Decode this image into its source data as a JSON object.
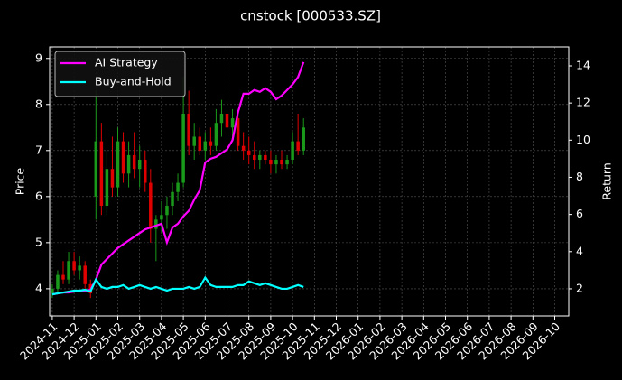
{
  "chart_data": {
    "type": "candlestick_returns",
    "title": "cnstock [000533.SZ]",
    "y_label": "Price",
    "y2_label": "Return",
    "x": [
      0,
      0.25,
      0.5,
      0.75,
      1,
      1.25,
      1.5,
      1.75,
      2,
      2.25,
      2.5,
      2.75,
      3,
      3.25,
      3.5,
      3.75,
      4,
      4.25,
      4.5,
      4.75,
      5,
      5.25,
      5.5,
      5.75,
      6,
      6.25,
      6.5,
      6.75,
      7,
      7.25,
      7.5,
      7.75,
      8,
      8.25,
      8.5,
      8.75,
      9,
      9.25,
      9.5,
      9.75,
      10,
      10.25,
      10.5,
      10.75,
      11,
      11.25,
      11.5
    ],
    "candles": {
      "open": [
        3.9,
        4.0,
        4.3,
        4.2,
        4.6,
        4.4,
        4.5,
        4.1,
        6.0,
        7.2,
        5.8,
        6.6,
        6.2,
        7.2,
        6.5,
        6.9,
        6.6,
        6.8,
        6.3,
        5.3,
        5.5,
        5.6,
        5.8,
        6.1,
        6.3,
        7.8,
        7.1,
        7.3,
        7.0,
        7.2,
        7.1,
        7.6,
        7.8,
        7.5,
        7.7,
        7.1,
        7.0,
        6.9,
        6.8,
        6.9,
        6.8,
        6.7,
        6.8,
        6.7,
        6.8,
        7.2,
        7.0
      ],
      "high": [
        4.1,
        4.4,
        4.6,
        4.8,
        4.8,
        4.7,
        4.6,
        4.2,
        8.3,
        7.6,
        7.0,
        7.3,
        7.5,
        7.4,
        7.2,
        7.4,
        7.1,
        7.0,
        6.6,
        5.6,
        5.9,
        6.0,
        6.3,
        6.5,
        8.6,
        8.3,
        7.6,
        7.5,
        7.4,
        7.5,
        7.9,
        8.1,
        8.0,
        7.9,
        7.8,
        7.4,
        7.3,
        7.2,
        7.0,
        7.0,
        7.0,
        6.9,
        7.0,
        6.9,
        7.4,
        7.8,
        7.7
      ],
      "low": [
        3.8,
        3.9,
        4.1,
        4.1,
        4.3,
        4.2,
        4.0,
        3.8,
        5.5,
        5.6,
        5.6,
        6.0,
        6.0,
        6.3,
        6.2,
        6.4,
        6.2,
        6.1,
        5.0,
        4.6,
        5.2,
        5.3,
        5.6,
        5.9,
        6.2,
        6.9,
        6.8,
        6.9,
        6.8,
        6.9,
        7.0,
        7.3,
        7.3,
        7.2,
        7.0,
        6.8,
        6.7,
        6.6,
        6.6,
        6.7,
        6.5,
        6.5,
        6.6,
        6.6,
        6.7,
        6.9,
        6.9
      ],
      "close": [
        4.0,
        4.3,
        4.2,
        4.6,
        4.4,
        4.5,
        4.1,
        3.9,
        7.2,
        5.8,
        6.6,
        6.2,
        7.2,
        6.5,
        6.9,
        6.6,
        6.8,
        6.3,
        5.3,
        5.5,
        5.6,
        5.8,
        6.1,
        6.3,
        7.8,
        7.1,
        7.3,
        7.0,
        7.2,
        7.1,
        7.6,
        7.8,
        7.5,
        7.7,
        7.1,
        7.0,
        6.9,
        6.8,
        6.9,
        6.8,
        6.7,
        6.8,
        6.7,
        6.8,
        7.2,
        7.0,
        7.5
      ],
      "up_color": "#1a9a1a",
      "down_color": "#e00000"
    },
    "series": [
      {
        "name": "AI Strategy",
        "color": "#ff00ff",
        "axis": "y2",
        "values": [
          1.7,
          1.75,
          1.8,
          1.8,
          1.85,
          1.9,
          1.9,
          1.95,
          2.5,
          3.3,
          3.6,
          3.9,
          4.2,
          4.4,
          4.6,
          4.8,
          5.0,
          5.2,
          5.3,
          5.4,
          5.5,
          4.5,
          5.3,
          5.5,
          5.9,
          6.2,
          6.8,
          7.3,
          8.8,
          9.0,
          9.1,
          9.3,
          9.5,
          10.0,
          11.5,
          12.5,
          12.5,
          12.7,
          12.6,
          12.8,
          12.6,
          12.2,
          12.4,
          12.7,
          13.0,
          13.4,
          14.2
        ]
      },
      {
        "name": "Buy-and-Hold",
        "color": "#00ffff",
        "axis": "y2",
        "values": [
          1.7,
          1.75,
          1.8,
          1.85,
          1.9,
          1.9,
          1.95,
          1.85,
          2.5,
          2.1,
          2.0,
          2.1,
          2.1,
          2.2,
          2.0,
          2.1,
          2.2,
          2.1,
          2.0,
          2.1,
          2.0,
          1.9,
          2.0,
          2.0,
          2.0,
          2.1,
          2.0,
          2.1,
          2.6,
          2.2,
          2.1,
          2.1,
          2.1,
          2.1,
          2.2,
          2.2,
          2.4,
          2.3,
          2.2,
          2.3,
          2.2,
          2.1,
          2.0,
          2.0,
          2.1,
          2.2,
          2.1
        ]
      }
    ],
    "xlim": [
      -0.12,
      23.64
    ],
    "xticks": [
      {
        "value": 0,
        "label": "2024-11"
      },
      {
        "value": 1,
        "label": "2024-12"
      },
      {
        "value": 2,
        "label": "2025-01"
      },
      {
        "value": 3,
        "label": "2025-02"
      },
      {
        "value": 4,
        "label": "2025-03"
      },
      {
        "value": 5,
        "label": "2025-04"
      },
      {
        "value": 6,
        "label": "2025-05"
      },
      {
        "value": 7,
        "label": "2025-06"
      },
      {
        "value": 8,
        "label": "2025-07"
      },
      {
        "value": 9,
        "label": "2025-08"
      },
      {
        "value": 10,
        "label": "2025-09"
      },
      {
        "value": 11,
        "label": "2025-10"
      },
      {
        "value": 12,
        "label": "2025-11"
      },
      {
        "value": 13,
        "label": "2025-12"
      },
      {
        "value": 14,
        "label": "2026-01"
      },
      {
        "value": 15,
        "label": "2026-02"
      },
      {
        "value": 16,
        "label": "2026-03"
      },
      {
        "value": 17,
        "label": "2026-04"
      },
      {
        "value": 18,
        "label": "2026-05"
      },
      {
        "value": 19,
        "label": "2026-06"
      },
      {
        "value": 20,
        "label": "2026-07"
      },
      {
        "value": 21,
        "label": "2026-08"
      },
      {
        "value": 22,
        "label": "2026-09"
      },
      {
        "value": 23,
        "label": "2026-10"
      }
    ],
    "ylim": [
      3.41,
      9.25
    ],
    "yticks": [
      4,
      5,
      6,
      7,
      8,
      9
    ],
    "y2lim": [
      0.54,
      15.02
    ],
    "y2ticks": [
      2,
      4,
      6,
      8,
      10,
      12,
      14
    ],
    "grid": true,
    "legend": "upper left"
  }
}
